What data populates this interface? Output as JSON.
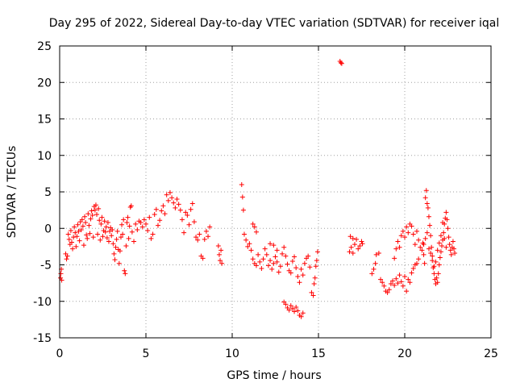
{
  "chart_data": {
    "type": "scatter",
    "title": "Day 295 of 2022, Sidereal Day-to-day VTEC variation (SDTVAR) for receiver iqal",
    "xlabel": "GPS time / hours",
    "ylabel": "SDTVAR / TECUs",
    "xlim": [
      0,
      25
    ],
    "ylim": [
      -15,
      25
    ],
    "xticks": [
      0,
      5,
      10,
      15,
      20,
      25
    ],
    "yticks": [
      -15,
      -10,
      -5,
      0,
      5,
      10,
      15,
      20,
      25
    ],
    "grid": true,
    "marker": "+",
    "color": "#ff0000",
    "series": [
      {
        "name": "SDTVAR",
        "points": [
          [
            0.05,
            -6.8
          ],
          [
            0.07,
            -6.2
          ],
          [
            0.1,
            -5.6
          ],
          [
            0.12,
            -7.1
          ],
          [
            0.35,
            -3.5
          ],
          [
            0.4,
            -4.2
          ],
          [
            0.45,
            -3.8
          ],
          [
            0.5,
            -0.8
          ],
          [
            0.55,
            -1.5
          ],
          [
            0.6,
            -2.2
          ],
          [
            0.65,
            -0.3
          ],
          [
            0.7,
            -1.9
          ],
          [
            0.75,
            -2.8
          ],
          [
            0.8,
            -1.2
          ],
          [
            0.85,
            0.2
          ],
          [
            0.9,
            -0.6
          ],
          [
            0.95,
            -2.5
          ],
          [
            1.0,
            -1.1
          ],
          [
            1.05,
            0.5
          ],
          [
            1.1,
            -0.4
          ],
          [
            1.15,
            -1.7
          ],
          [
            1.2,
            0.9
          ],
          [
            1.25,
            -0.2
          ],
          [
            1.3,
            1.2
          ],
          [
            1.35,
            0.3
          ],
          [
            1.4,
            -2.3
          ],
          [
            1.45,
            1.6
          ],
          [
            1.5,
            0.8
          ],
          [
            1.55,
            -0.9
          ],
          [
            1.6,
            -1.4
          ],
          [
            1.65,
            2.0
          ],
          [
            1.7,
            0.4
          ],
          [
            1.75,
            -0.7
          ],
          [
            1.8,
            1.3
          ],
          [
            1.85,
            2.4
          ],
          [
            1.9,
            1.8
          ],
          [
            1.95,
            -1.2
          ],
          [
            2.0,
            3.0
          ],
          [
            2.05,
            2.5
          ],
          [
            2.1,
            3.2
          ],
          [
            2.15,
            1.9
          ],
          [
            2.2,
            -0.8
          ],
          [
            2.25,
            2.7
          ],
          [
            2.3,
            1.1
          ],
          [
            2.35,
            -1.6
          ],
          [
            2.4,
            0.6
          ],
          [
            2.45,
            1.5
          ],
          [
            2.5,
            -1.1
          ],
          [
            2.55,
            -0.3
          ],
          [
            2.6,
            1.0
          ],
          [
            2.65,
            -0.5
          ],
          [
            2.7,
            0.2
          ],
          [
            2.75,
            -1.3
          ],
          [
            2.8,
            0.8
          ],
          [
            2.85,
            -1.8
          ],
          [
            2.9,
            -0.4
          ],
          [
            2.95,
            0.1
          ],
          [
            3.0,
            -1.0
          ],
          [
            3.05,
            -0.2
          ],
          [
            3.1,
            -2.1
          ],
          [
            3.15,
            -3.5
          ],
          [
            3.2,
            -4.3
          ],
          [
            3.25,
            -2.6
          ],
          [
            3.3,
            -1.5
          ],
          [
            3.35,
            -0.4
          ],
          [
            3.4,
            -2.9
          ],
          [
            3.45,
            -4.8
          ],
          [
            3.5,
            -3.1
          ],
          [
            3.55,
            -1.2
          ],
          [
            3.6,
            0.5
          ],
          [
            3.65,
            -0.8
          ],
          [
            3.7,
            1.2
          ],
          [
            3.75,
            -5.8
          ],
          [
            3.8,
            -6.2
          ],
          [
            3.85,
            -2.4
          ],
          [
            3.9,
            0.8
          ],
          [
            3.95,
            1.5
          ],
          [
            4.0,
            -1.4
          ],
          [
            4.05,
            0.3
          ],
          [
            4.1,
            2.9
          ],
          [
            4.15,
            3.1
          ],
          [
            4.2,
            -0.5
          ],
          [
            4.3,
            -1.8
          ],
          [
            4.4,
            0.6
          ],
          [
            4.5,
            -0.2
          ],
          [
            4.6,
            1.0
          ],
          [
            4.7,
            0.8
          ],
          [
            4.8,
            0.2
          ],
          [
            4.9,
            1.2
          ],
          [
            5.0,
            0.6
          ],
          [
            5.1,
            -0.3
          ],
          [
            5.2,
            1.5
          ],
          [
            5.3,
            -1.4
          ],
          [
            5.4,
            -0.8
          ],
          [
            5.5,
            1.9
          ],
          [
            5.6,
            2.6
          ],
          [
            5.7,
            0.4
          ],
          [
            5.8,
            1.1
          ],
          [
            5.9,
            2.4
          ],
          [
            6.0,
            3.1
          ],
          [
            6.1,
            2.0
          ],
          [
            6.2,
            4.6
          ],
          [
            6.3,
            3.8
          ],
          [
            6.4,
            4.9
          ],
          [
            6.5,
            4.2
          ],
          [
            6.6,
            3.5
          ],
          [
            6.7,
            2.8
          ],
          [
            6.8,
            4.0
          ],
          [
            6.9,
            3.3
          ],
          [
            7.0,
            2.5
          ],
          [
            7.1,
            1.2
          ],
          [
            7.2,
            -0.6
          ],
          [
            7.3,
            2.2
          ],
          [
            7.4,
            1.8
          ],
          [
            7.5,
            0.5
          ],
          [
            7.6,
            2.6
          ],
          [
            7.7,
            3.4
          ],
          [
            7.8,
            0.9
          ],
          [
            7.9,
            -1.2
          ],
          [
            8.0,
            -1.6
          ],
          [
            8.1,
            -0.8
          ],
          [
            8.2,
            -3.8
          ],
          [
            8.3,
            -4.1
          ],
          [
            8.4,
            -1.5
          ],
          [
            8.5,
            -0.4
          ],
          [
            8.6,
            -1.1
          ],
          [
            8.7,
            0.2
          ],
          [
            9.2,
            -2.4
          ],
          [
            9.25,
            -3.6
          ],
          [
            9.3,
            -4.4
          ],
          [
            9.35,
            -3.0
          ],
          [
            9.4,
            -4.8
          ],
          [
            10.55,
            6.0
          ],
          [
            10.6,
            4.3
          ],
          [
            10.65,
            2.5
          ],
          [
            10.7,
            -0.8
          ],
          [
            10.8,
            -1.6
          ],
          [
            10.9,
            -2.5
          ],
          [
            11.0,
            -2.1
          ],
          [
            11.1,
            -3.0
          ],
          [
            11.2,
            -4.2
          ],
          [
            11.3,
            -4.8
          ],
          [
            11.4,
            -5.1
          ],
          [
            11.5,
            -3.6
          ],
          [
            11.6,
            -4.6
          ],
          [
            11.7,
            -5.5
          ],
          [
            11.8,
            -4.2
          ],
          [
            11.9,
            -2.8
          ],
          [
            12.0,
            -3.6
          ],
          [
            12.1,
            -5.1
          ],
          [
            12.2,
            -4.4
          ],
          [
            12.3,
            -5.6
          ],
          [
            12.4,
            -4.8
          ],
          [
            12.5,
            -3.9
          ],
          [
            12.6,
            -4.6
          ],
          [
            12.7,
            -6.0
          ],
          [
            12.8,
            -5.2
          ],
          [
            12.9,
            -3.5
          ],
          [
            13.0,
            -2.6
          ],
          [
            13.1,
            -3.8
          ],
          [
            13.2,
            -4.9
          ],
          [
            13.3,
            -5.8
          ],
          [
            13.4,
            -6.1
          ],
          [
            13.5,
            -4.5
          ],
          [
            13.6,
            -3.9
          ],
          [
            13.7,
            -5.4
          ],
          [
            13.8,
            -6.6
          ],
          [
            13.9,
            -7.4
          ],
          [
            14.0,
            -5.6
          ],
          [
            14.1,
            -6.4
          ],
          [
            14.2,
            -4.8
          ],
          [
            14.3,
            -4.1
          ],
          [
            14.4,
            -3.8
          ],
          [
            14.5,
            -5.3
          ],
          [
            11.2,
            0.6
          ],
          [
            11.3,
            0.2
          ],
          [
            11.4,
            -0.5
          ],
          [
            12.2,
            -2.1
          ],
          [
            12.4,
            -2.3
          ],
          [
            12.6,
            -3.0
          ],
          [
            13.0,
            -10.1
          ],
          [
            13.1,
            -10.4
          ],
          [
            13.2,
            -10.9
          ],
          [
            13.3,
            -11.2
          ],
          [
            13.4,
            -10.6
          ],
          [
            13.5,
            -11.0
          ],
          [
            13.6,
            -11.4
          ],
          [
            13.7,
            -10.8
          ],
          [
            13.8,
            -11.3
          ],
          [
            13.9,
            -11.9
          ],
          [
            14.0,
            -12.1
          ],
          [
            14.1,
            -11.6
          ],
          [
            14.6,
            -8.8
          ],
          [
            14.7,
            -9.2
          ],
          [
            14.75,
            -7.6
          ],
          [
            14.8,
            -6.8
          ],
          [
            14.85,
            -5.2
          ],
          [
            14.9,
            -4.4
          ],
          [
            14.95,
            -3.2
          ],
          [
            16.25,
            22.9
          ],
          [
            16.3,
            22.7
          ],
          [
            16.35,
            22.6
          ],
          [
            16.8,
            -3.2
          ],
          [
            16.9,
            -2.6
          ],
          [
            17.0,
            -3.4
          ],
          [
            17.1,
            -2.2
          ],
          [
            17.2,
            -1.5
          ],
          [
            17.3,
            -2.8
          ],
          [
            17.4,
            -2.4
          ],
          [
            17.5,
            -1.8
          ],
          [
            17.55,
            -2.1
          ],
          [
            17.0,
            -1.4
          ],
          [
            16.85,
            -1.1
          ],
          [
            18.1,
            -6.2
          ],
          [
            18.2,
            -5.6
          ],
          [
            18.3,
            -4.8
          ],
          [
            18.35,
            -3.6
          ],
          [
            18.5,
            -3.4
          ],
          [
            18.6,
            -7.0
          ],
          [
            18.7,
            -7.4
          ],
          [
            18.8,
            -7.9
          ],
          [
            18.9,
            -8.6
          ],
          [
            19.0,
            -8.8
          ],
          [
            19.1,
            -8.4
          ],
          [
            19.2,
            -7.6
          ],
          [
            19.3,
            -7.2
          ],
          [
            19.4,
            -7.8
          ],
          [
            19.5,
            -6.9
          ],
          [
            19.6,
            -7.5
          ],
          [
            19.7,
            -6.4
          ],
          [
            19.8,
            -7.3
          ],
          [
            19.9,
            -7.9
          ],
          [
            20.0,
            -6.6
          ],
          [
            20.1,
            -8.6
          ],
          [
            20.2,
            -7.0
          ],
          [
            20.3,
            -7.4
          ],
          [
            20.4,
            -6.1
          ],
          [
            20.5,
            -5.5
          ],
          [
            20.6,
            -5.0
          ],
          [
            20.7,
            -4.8
          ],
          [
            20.8,
            -4.2
          ],
          [
            19.4,
            -4.1
          ],
          [
            19.5,
            -2.8
          ],
          [
            19.6,
            -1.8
          ],
          [
            19.7,
            -2.6
          ],
          [
            19.8,
            -1.0
          ],
          [
            19.9,
            -0.4
          ],
          [
            20.0,
            -1.2
          ],
          [
            20.1,
            0.2
          ],
          [
            20.2,
            -0.6
          ],
          [
            20.3,
            0.6
          ],
          [
            20.4,
            0.3
          ],
          [
            20.5,
            -0.8
          ],
          [
            20.6,
            -2.2
          ],
          [
            20.7,
            -0.4
          ],
          [
            20.8,
            -1.6
          ],
          [
            20.9,
            -2.6
          ],
          [
            21.0,
            -3.0
          ],
          [
            21.05,
            -2.0
          ],
          [
            21.1,
            -3.6
          ],
          [
            21.15,
            -4.8
          ],
          [
            21.2,
            4.2
          ],
          [
            21.25,
            5.2
          ],
          [
            21.3,
            3.4
          ],
          [
            21.35,
            2.8
          ],
          [
            21.4,
            1.6
          ],
          [
            21.45,
            0.4
          ],
          [
            21.5,
            -1.0
          ],
          [
            21.55,
            -2.6
          ],
          [
            21.6,
            -3.8
          ],
          [
            21.65,
            -5.4
          ],
          [
            21.7,
            -6.2
          ],
          [
            21.75,
            -7.0
          ],
          [
            21.8,
            -7.6
          ],
          [
            21.85,
            -6.8
          ],
          [
            21.9,
            -7.4
          ],
          [
            21.95,
            -6.2
          ],
          [
            22.0,
            -5.0
          ],
          [
            22.05,
            -4.0
          ],
          [
            22.1,
            -3.2
          ],
          [
            22.15,
            -2.4
          ],
          [
            22.2,
            -1.6
          ],
          [
            22.25,
            -0.6
          ],
          [
            22.3,
            0.6
          ],
          [
            22.35,
            1.4
          ],
          [
            22.4,
            2.2
          ],
          [
            22.45,
            1.2
          ],
          [
            22.5,
            0.0
          ],
          [
            22.55,
            -1.2
          ],
          [
            22.6,
            -2.2
          ],
          [
            22.65,
            -3.0
          ],
          [
            22.7,
            -3.6
          ],
          [
            22.75,
            -2.6
          ],
          [
            22.8,
            -1.8
          ],
          [
            22.85,
            -2.8
          ],
          [
            22.9,
            -3.4
          ],
          [
            21.1,
            -2.2
          ],
          [
            21.2,
            -1.4
          ],
          [
            21.3,
            -0.6
          ],
          [
            21.4,
            -2.8
          ],
          [
            21.5,
            -3.4
          ],
          [
            21.6,
            -4.4
          ],
          [
            21.7,
            -5.2
          ],
          [
            21.8,
            -4.6
          ],
          [
            21.9,
            -3.0
          ],
          [
            22.0,
            -2.0
          ],
          [
            22.1,
            -1.0
          ],
          [
            22.2,
            0.8
          ],
          [
            22.3,
            -1.4
          ],
          [
            22.4,
            -2.6
          ]
        ]
      }
    ]
  }
}
